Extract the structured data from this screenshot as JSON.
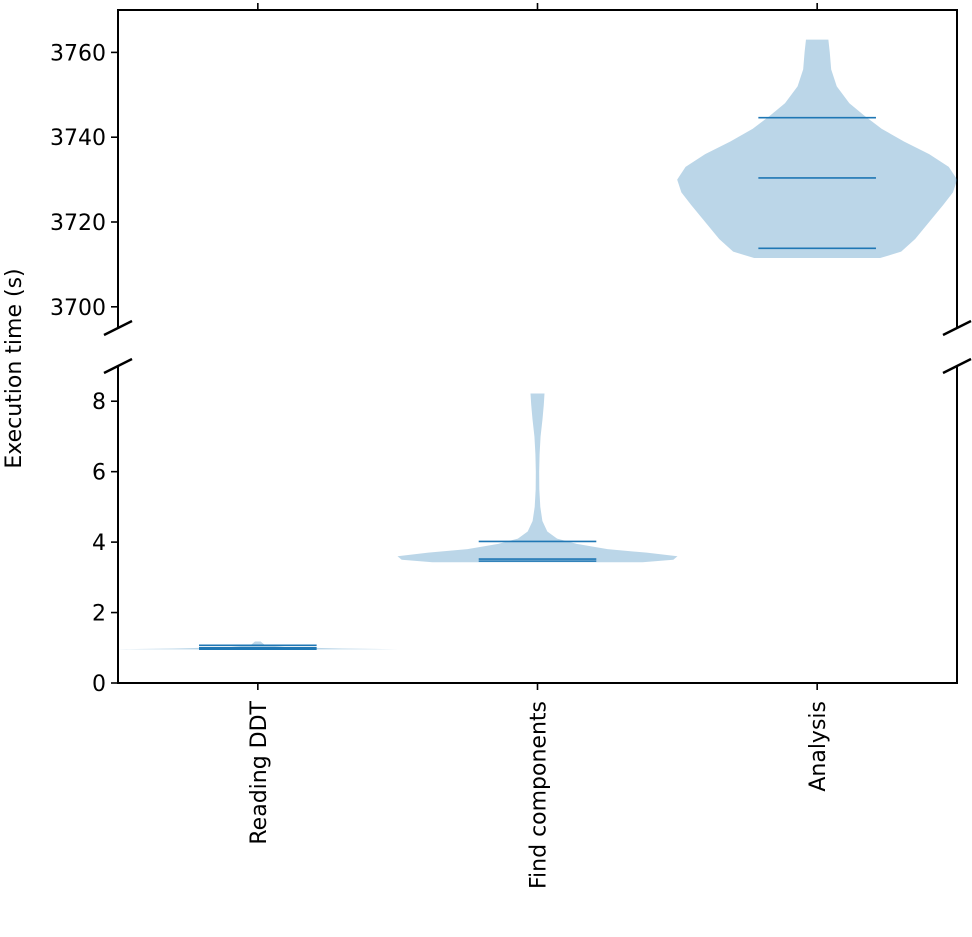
{
  "chart_data": {
    "type": "violin",
    "title": "",
    "xlabel": "",
    "ylabel": "Execution time (s)",
    "broken_y_axis": true,
    "grid": false,
    "categories": [
      "Reading DDT",
      "Find components",
      "Analysis"
    ],
    "upper_panel": {
      "ylim": [
        3695,
        3770
      ],
      "yticks": [
        3700,
        3720,
        3740,
        3760
      ]
    },
    "lower_panel": {
      "ylim": [
        0,
        9
      ],
      "yticks": [
        0,
        2,
        4,
        6,
        8
      ]
    },
    "violins": [
      {
        "category": "Reading DDT",
        "panel": "lower",
        "min": 0.95,
        "max": 1.18,
        "percentile_lines": [
          0.96,
          1.0,
          1.07
        ],
        "shape": [
          [
            0.95,
            0.3
          ],
          [
            0.96,
            1.0
          ],
          [
            0.98,
            0.6
          ],
          [
            1.02,
            0.2
          ],
          [
            1.08,
            0.05
          ],
          [
            1.18,
            0.02
          ]
        ]
      },
      {
        "category": "Find components",
        "panel": "lower",
        "min": 3.43,
        "max": 8.22,
        "percentile_lines": [
          3.46,
          3.52,
          4.02
        ],
        "shape": [
          [
            3.43,
            0.75
          ],
          [
            3.5,
            0.97
          ],
          [
            3.6,
            1.0
          ],
          [
            3.7,
            0.78
          ],
          [
            3.8,
            0.5
          ],
          [
            3.95,
            0.28
          ],
          [
            4.1,
            0.14
          ],
          [
            4.3,
            0.07
          ],
          [
            4.6,
            0.035
          ],
          [
            5.0,
            0.02
          ],
          [
            5.5,
            0.013
          ],
          [
            6.0,
            0.012
          ],
          [
            6.5,
            0.015
          ],
          [
            7.0,
            0.022
          ],
          [
            7.5,
            0.036
          ],
          [
            7.9,
            0.045
          ],
          [
            8.22,
            0.05
          ]
        ]
      },
      {
        "category": "Analysis",
        "panel": "upper",
        "min": 3711.5,
        "max": 3763,
        "percentile_lines": [
          3713.8,
          3730.4,
          3744.6
        ],
        "shape": [
          [
            3711.5,
            0.45
          ],
          [
            3713,
            0.6
          ],
          [
            3716,
            0.7
          ],
          [
            3720,
            0.8
          ],
          [
            3724,
            0.9
          ],
          [
            3727,
            0.97
          ],
          [
            3730,
            1.0
          ],
          [
            3733,
            0.94
          ],
          [
            3736,
            0.8
          ],
          [
            3739,
            0.62
          ],
          [
            3742,
            0.46
          ],
          [
            3745,
            0.34
          ],
          [
            3748,
            0.23
          ],
          [
            3752,
            0.14
          ],
          [
            3756,
            0.1
          ],
          [
            3760,
            0.09
          ],
          [
            3763,
            0.08
          ]
        ]
      }
    ]
  }
}
